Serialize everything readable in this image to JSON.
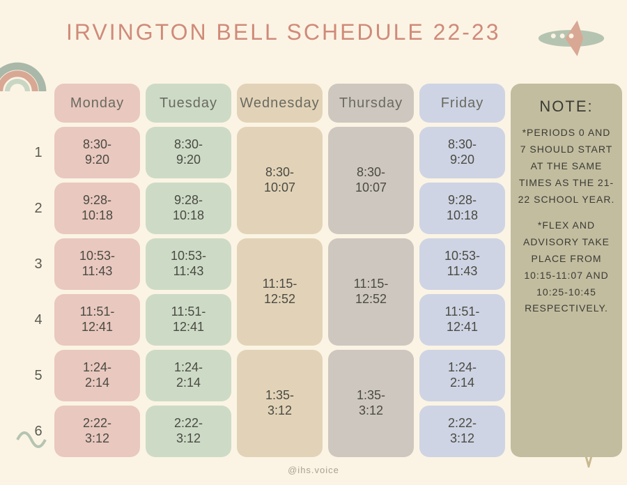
{
  "title": "IRVINGTON BELL SCHEDULE 22-23",
  "credit": "@ihs.voice",
  "colors": {
    "background": "#fbf4e4",
    "title": "#d08a7a",
    "monday": "#e9c8bf",
    "tuesday": "#cddbc6",
    "wednesday": "#e2d3b8",
    "thursday": "#cec7bf",
    "friday": "#ced4e4",
    "note": "#c2bd9f",
    "text_dark": "#4a4a42",
    "text_header": "#6a6a60"
  },
  "periods": [
    "1",
    "2",
    "3",
    "4",
    "5",
    "6"
  ],
  "days": [
    {
      "name": "Monday",
      "color_key": "monday",
      "cells": [
        {
          "span": 1,
          "lines": [
            "8:30-",
            "9:20"
          ]
        },
        {
          "span": 1,
          "lines": [
            "9:28-",
            "10:18"
          ]
        },
        {
          "span": 1,
          "lines": [
            "10:53-",
            "11:43"
          ]
        },
        {
          "span": 1,
          "lines": [
            "11:51-",
            "12:41"
          ]
        },
        {
          "span": 1,
          "lines": [
            "1:24-",
            "2:14"
          ]
        },
        {
          "span": 1,
          "lines": [
            "2:22-",
            "3:12"
          ]
        }
      ]
    },
    {
      "name": "Tuesday",
      "color_key": "tuesday",
      "cells": [
        {
          "span": 1,
          "lines": [
            "8:30-",
            "9:20"
          ]
        },
        {
          "span": 1,
          "lines": [
            "9:28-",
            "10:18"
          ]
        },
        {
          "span": 1,
          "lines": [
            "10:53-",
            "11:43"
          ]
        },
        {
          "span": 1,
          "lines": [
            "11:51-",
            "12:41"
          ]
        },
        {
          "span": 1,
          "lines": [
            "1:24-",
            "2:14"
          ]
        },
        {
          "span": 1,
          "lines": [
            "2:22-",
            "3:12"
          ]
        }
      ]
    },
    {
      "name": "Wednesday",
      "color_key": "wednesday",
      "cells": [
        {
          "span": 2,
          "lines": [
            "8:30-",
            "10:07"
          ]
        },
        {
          "span": 2,
          "lines": [
            "11:15-",
            "12:52"
          ]
        },
        {
          "span": 2,
          "lines": [
            "1:35-",
            "3:12"
          ]
        }
      ]
    },
    {
      "name": "Thursday",
      "color_key": "thursday",
      "cells": [
        {
          "span": 2,
          "lines": [
            "8:30-",
            "10:07"
          ]
        },
        {
          "span": 2,
          "lines": [
            "11:15-",
            "12:52"
          ]
        },
        {
          "span": 2,
          "lines": [
            "1:35-",
            "3:12"
          ]
        }
      ]
    },
    {
      "name": "Friday",
      "color_key": "friday",
      "cells": [
        {
          "span": 1,
          "lines": [
            "8:30-",
            "9:20"
          ]
        },
        {
          "span": 1,
          "lines": [
            "9:28-",
            "10:18"
          ]
        },
        {
          "span": 1,
          "lines": [
            "10:53-",
            "11:43"
          ]
        },
        {
          "span": 1,
          "lines": [
            "11:51-",
            "12:41"
          ]
        },
        {
          "span": 1,
          "lines": [
            "1:24-",
            "2:14"
          ]
        },
        {
          "span": 1,
          "lines": [
            "2:22-",
            "3:12"
          ]
        }
      ]
    }
  ],
  "note": {
    "title": "NOTE:",
    "body1": "*PERIODS 0 AND 7 SHOULD START AT THE SAME TIMES AS THE 21-22 SCHOOL YEAR.",
    "body2": "*FLEX AND ADVISORY TAKE PLACE FROM 10:15-11:07 AND 10:25-10:45 RESPECTIVELY."
  }
}
